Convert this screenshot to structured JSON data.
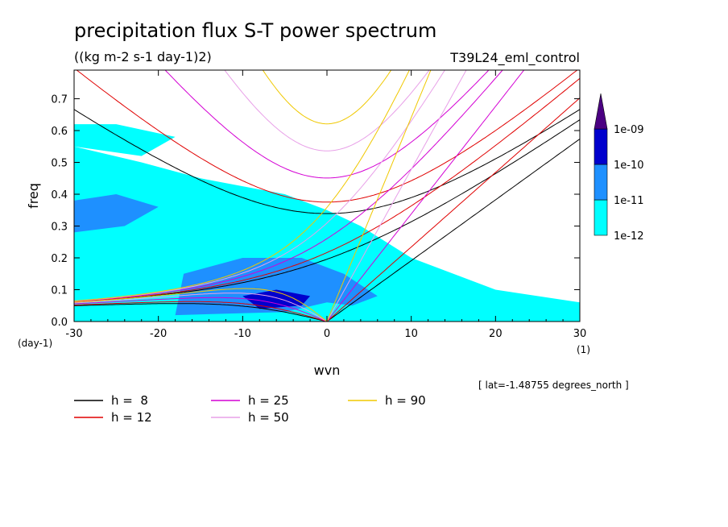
{
  "header": {
    "title": "precipitation flux S-T power spectrum",
    "units": "((kg m-2 s-1 day-1)2)",
    "run_name": "T39L24_eml_control"
  },
  "footer": {
    "location_note": "[ lat=-1.48755 degrees_north ]"
  },
  "chart_data": {
    "type": "heatmap",
    "title": "precipitation flux S-T power spectrum",
    "subtitle": "((kg m-2 s-1 day-1)2)",
    "xlabel": "wvn",
    "ylabel": "freq",
    "x_unit_label": "(1)",
    "y_unit_label": "(day-1)",
    "xlim": [
      -30,
      30
    ],
    "ylim": [
      0,
      0.79
    ],
    "x_ticks": [
      -30,
      -20,
      -10,
      0,
      10,
      20,
      30
    ],
    "x_tick_labels": [
      "-30",
      "-20",
      "-10",
      "0",
      "10",
      "20",
      "30"
    ],
    "y_ticks": [
      0,
      0.1,
      0.2,
      0.3,
      0.4,
      0.5,
      0.6,
      0.7
    ],
    "y_tick_labels": [
      "0.0",
      "0.1",
      "0.2",
      "0.3",
      "0.4",
      "0.5",
      "0.6",
      "0.7"
    ],
    "colorbar": {
      "levels": [
        1e-12,
        1e-11,
        1e-10,
        1e-09
      ],
      "labels": [
        "1e-12",
        "1e-11",
        "1e-10",
        "1e-09"
      ],
      "colors": [
        "#00ffff",
        "#1e90ff",
        "#0000cd",
        "#4b0082"
      ]
    },
    "field_regions": [
      {
        "level": 1,
        "desc": "broad low band",
        "poly": [
          [
            -30,
            0
          ],
          [
            30,
            0
          ],
          [
            30,
            0.06
          ],
          [
            20,
            0.1
          ],
          [
            10,
            0.2
          ],
          [
            4,
            0.3
          ],
          [
            0,
            0.35
          ],
          [
            -5,
            0.4
          ],
          [
            -15,
            0.45
          ],
          [
            -22,
            0.5
          ],
          [
            -30,
            0.55
          ]
        ]
      },
      {
        "level": 1,
        "desc": "upper left patch",
        "poly": [
          [
            -30,
            0.55
          ],
          [
            -22,
            0.52
          ],
          [
            -18,
            0.58
          ],
          [
            -25,
            0.62
          ],
          [
            -30,
            0.62
          ]
        ]
      },
      {
        "level": 2,
        "desc": "low-frequency core",
        "poly": [
          [
            -18,
            0.02
          ],
          [
            -5,
            0.03
          ],
          [
            0,
            0.06
          ],
          [
            3,
            0.05
          ],
          [
            6,
            0.08
          ],
          [
            2,
            0.15
          ],
          [
            -3,
            0.2
          ],
          [
            -10,
            0.2
          ],
          [
            -17,
            0.15
          ]
        ]
      },
      {
        "level": 2,
        "desc": "upper left core",
        "poly": [
          [
            -30,
            0.28
          ],
          [
            -24,
            0.3
          ],
          [
            -20,
            0.36
          ],
          [
            -25,
            0.4
          ],
          [
            -30,
            0.38
          ]
        ]
      },
      {
        "level": 3,
        "desc": "peak",
        "poly": [
          [
            -8,
            0.04
          ],
          [
            -3,
            0.05
          ],
          [
            -2,
            0.08
          ],
          [
            -6,
            0.1
          ],
          [
            -10,
            0.08
          ]
        ]
      }
    ],
    "dispersion_curves": [
      {
        "name": "h =  8",
        "h": 8,
        "color": "#000000"
      },
      {
        "name": "h = 12",
        "h": 12,
        "color": "#e00000"
      },
      {
        "name": "h = 25",
        "h": 25,
        "color": "#d400d4"
      },
      {
        "name": "h = 50",
        "h": 50,
        "color": "#e8a0e8"
      },
      {
        "name": "h = 90",
        "h": 90,
        "color": "#f0c800"
      }
    ],
    "legend_placement": "below"
  }
}
